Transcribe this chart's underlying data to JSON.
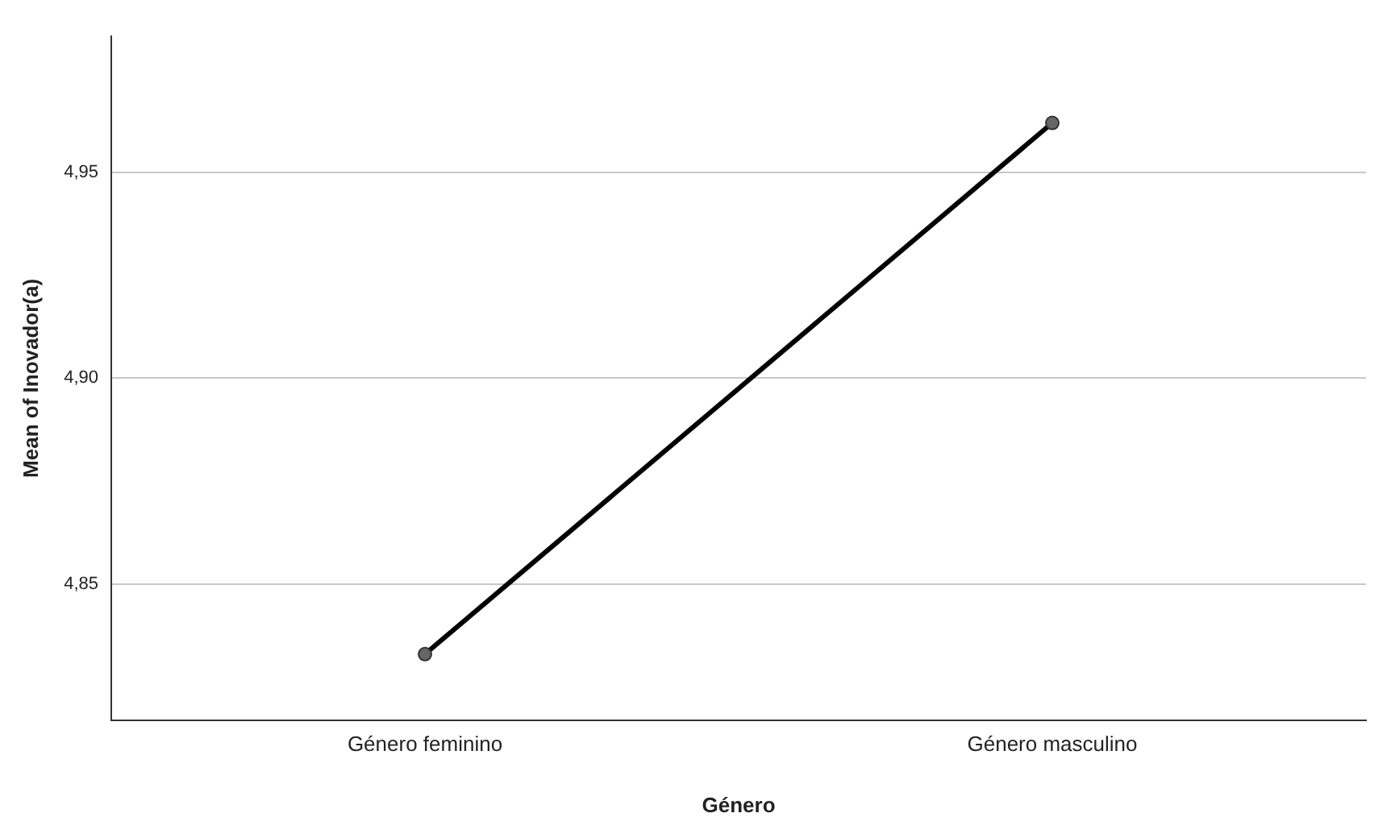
{
  "chart_data": {
    "type": "line",
    "xlabel": "Género",
    "ylabel": "Mean of Inovador(a)",
    "categories": [
      "Género feminino",
      "Género masculino"
    ],
    "series": [
      {
        "color": "#000000",
        "values": [
          4.833,
          4.962
        ]
      }
    ],
    "ylim": [
      4.817,
      4.983
    ],
    "yticks": [
      {
        "value": 4.85,
        "label": "4,85"
      },
      {
        "value": 4.9,
        "label": "4,90"
      },
      {
        "value": 4.95,
        "label": "4,95"
      }
    ],
    "grid": "y",
    "marker": "circle",
    "line_style": "solid",
    "legend": false
  }
}
